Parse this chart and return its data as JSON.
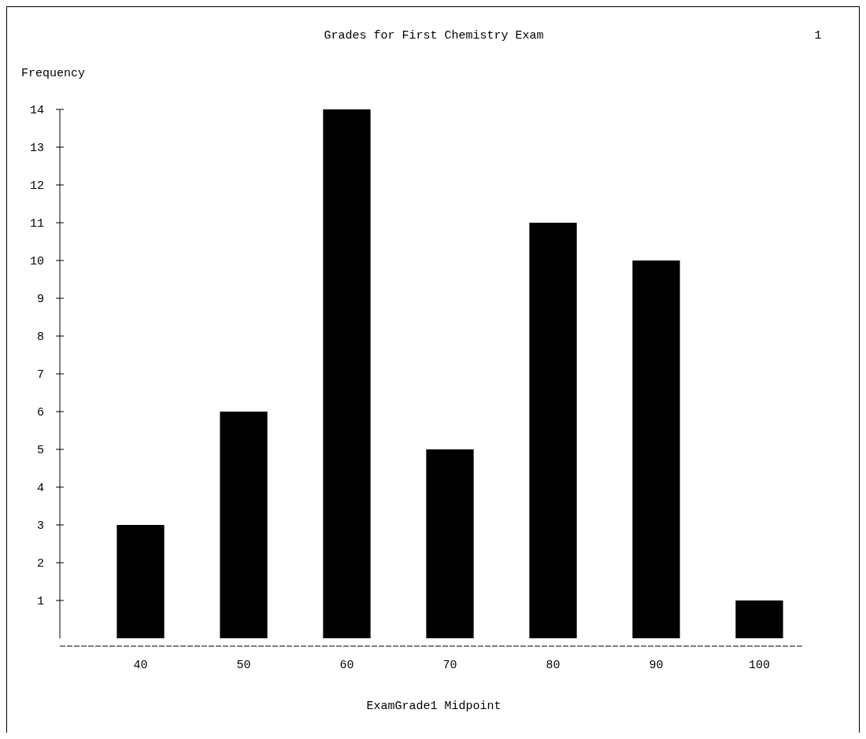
{
  "chart_data": {
    "type": "bar",
    "title": "Grades for First Chemistry Exam",
    "ylabel": "Frequency",
    "xlabel": "ExamGrade1 Midpoint",
    "annotations": [
      "1"
    ],
    "categories": [
      "40",
      "50",
      "60",
      "70",
      "80",
      "90",
      "100"
    ],
    "values": [
      3,
      6,
      14,
      5,
      11,
      10,
      1
    ],
    "color": "#000000",
    "ylim": [
      0,
      14
    ],
    "yticks": [
      1,
      2,
      3,
      4,
      5,
      6,
      7,
      8,
      9,
      10,
      11,
      12,
      13,
      14
    ],
    "grid": false
  }
}
